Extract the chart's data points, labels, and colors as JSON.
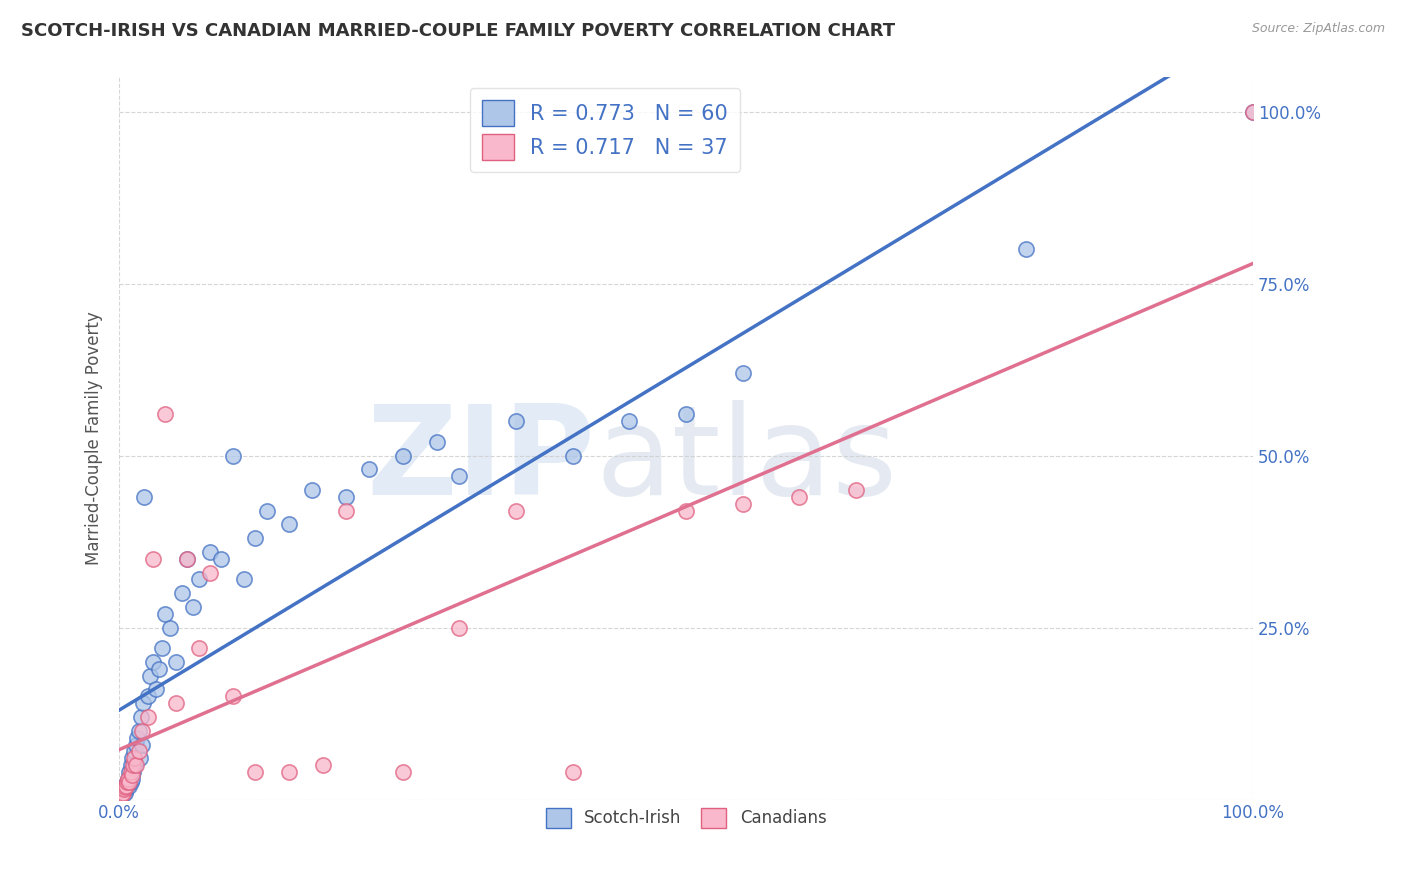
{
  "title": "SCOTCH-IRISH VS CANADIAN MARRIED-COUPLE FAMILY POVERTY CORRELATION CHART",
  "source": "Source: ZipAtlas.com",
  "ylabel": "Married-Couple Family Poverty",
  "watermark_zip": "ZIP",
  "watermark_atlas": "atlas",
  "scotch_irish_R": 0.773,
  "scotch_irish_N": 60,
  "canadian_R": 0.717,
  "canadian_N": 37,
  "blue_scatter_color": "#aec6e8",
  "blue_edge_color": "#4472c4",
  "pink_scatter_color": "#f9b8cb",
  "pink_edge_color": "#e06080",
  "blue_line_color": "#4472c4",
  "pink_line_color": "#e07090",
  "background_color": "#ffffff",
  "grid_color": "#cccccc",
  "title_color": "#333333",
  "axis_tick_color": "#4472c4",
  "ylabel_color": "#555555",
  "legend_text_color": "#4472c4",
  "source_color": "#999999",
  "xlim": [
    0.0,
    1.0
  ],
  "ylim": [
    0.0,
    1.05
  ],
  "xtick_positions": [
    0.0,
    1.0
  ],
  "xtick_labels": [
    "0.0%",
    "100.0%"
  ],
  "ytick_positions": [
    0.0,
    0.25,
    0.5,
    0.75,
    1.0
  ],
  "ytick_labels": [
    "",
    "25.0%",
    "50.0%",
    "75.0%",
    "100.0%"
  ],
  "si_x": [
    0.001,
    0.002,
    0.003,
    0.004,
    0.005,
    0.005,
    0.006,
    0.007,
    0.007,
    0.008,
    0.009,
    0.009,
    0.01,
    0.01,
    0.011,
    0.011,
    0.012,
    0.013,
    0.014,
    0.015,
    0.016,
    0.017,
    0.018,
    0.019,
    0.02,
    0.021,
    0.022,
    0.025,
    0.027,
    0.03,
    0.032,
    0.035,
    0.038,
    0.04,
    0.045,
    0.05,
    0.055,
    0.06,
    0.065,
    0.07,
    0.08,
    0.09,
    0.1,
    0.11,
    0.12,
    0.13,
    0.15,
    0.17,
    0.2,
    0.22,
    0.25,
    0.28,
    0.3,
    0.35,
    0.4,
    0.45,
    0.5,
    0.55,
    0.8,
    1.0
  ],
  "si_y": [
    0.005,
    0.01,
    0.008,
    0.015,
    0.01,
    0.02,
    0.015,
    0.025,
    0.02,
    0.03,
    0.02,
    0.04,
    0.025,
    0.05,
    0.03,
    0.06,
    0.04,
    0.07,
    0.05,
    0.08,
    0.09,
    0.1,
    0.06,
    0.12,
    0.08,
    0.14,
    0.44,
    0.15,
    0.18,
    0.2,
    0.16,
    0.19,
    0.22,
    0.27,
    0.25,
    0.2,
    0.3,
    0.35,
    0.28,
    0.32,
    0.36,
    0.35,
    0.5,
    0.32,
    0.38,
    0.42,
    0.4,
    0.45,
    0.44,
    0.48,
    0.5,
    0.52,
    0.47,
    0.55,
    0.5,
    0.55,
    0.56,
    0.62,
    0.8,
    1.0
  ],
  "ca_x": [
    0.001,
    0.002,
    0.003,
    0.004,
    0.005,
    0.006,
    0.007,
    0.008,
    0.009,
    0.01,
    0.011,
    0.012,
    0.013,
    0.015,
    0.017,
    0.02,
    0.025,
    0.03,
    0.04,
    0.05,
    0.06,
    0.07,
    0.08,
    0.1,
    0.12,
    0.15,
    0.18,
    0.2,
    0.25,
    0.3,
    0.35,
    0.4,
    0.5,
    0.55,
    0.6,
    0.65,
    1.0
  ],
  "ca_y": [
    0.004,
    0.008,
    0.01,
    0.015,
    0.018,
    0.02,
    0.025,
    0.03,
    0.025,
    0.04,
    0.035,
    0.05,
    0.06,
    0.05,
    0.07,
    0.1,
    0.12,
    0.35,
    0.56,
    0.14,
    0.35,
    0.22,
    0.33,
    0.15,
    0.04,
    0.04,
    0.05,
    0.42,
    0.04,
    0.25,
    0.42,
    0.04,
    0.42,
    0.43,
    0.44,
    0.45,
    1.0
  ]
}
